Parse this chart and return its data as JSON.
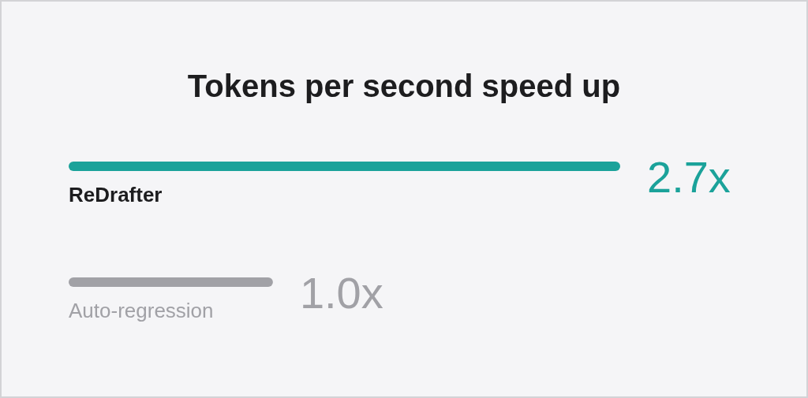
{
  "chart_data": {
    "type": "bar",
    "orientation": "horizontal",
    "title": "Tokens per second speed up",
    "categories": [
      "ReDrafter",
      "Auto-regression"
    ],
    "values": [
      2.7,
      1.0
    ],
    "colors": [
      "#1ba29a",
      "#a1a1a6"
    ],
    "value_labels": [
      "2.7x",
      "1.0x"
    ],
    "tick_labels": "y"
  }
}
